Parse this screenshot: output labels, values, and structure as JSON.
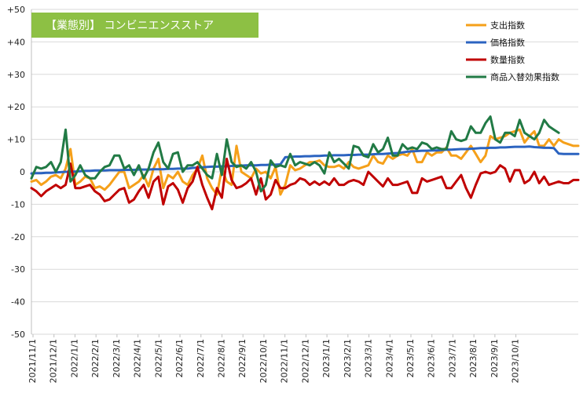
{
  "chart_data": {
    "type": "line",
    "title_box": {
      "text": "【業態別】 コンビニエンスストア",
      "background": "#8dc044",
      "color": "#ffffff"
    },
    "y_axis": {
      "min": -50,
      "max": 50,
      "step": 10,
      "tick_labels": [
        "+50",
        "+40",
        "+30",
        "+20",
        "+10",
        "0",
        "-10",
        "-20",
        "-30",
        "-40",
        "-50"
      ]
    },
    "x_axis": {
      "tick_labels": [
        "2021/11/1",
        "2021/12/1",
        "2022/1/1",
        "2022/2/1",
        "2022/3/1",
        "2022/4/1",
        "2022/5/1",
        "2022/6/1",
        "2022/7/1",
        "2022/8/1",
        "2022/9/1",
        "2022/10/1",
        "2022/11/1",
        "2022/12/1",
        "2023/1/1",
        "2023/2/1",
        "2023/3/1",
        "2023/4/1",
        "2023/5/1",
        "2023/6/1",
        "2023/7/1",
        "2023/8/1",
        "2023/9/1",
        "2023/10/1"
      ],
      "points_per_label": 4.3
    },
    "grid": "horizontal",
    "legend_position": "top-right",
    "series": [
      {
        "name": "支出指数",
        "color": "#f5a01a",
        "values": [
          -3,
          -2.5,
          -4,
          -3,
          -1.5,
          -1,
          -2,
          1,
          7,
          -4,
          -3,
          -1.5,
          -2,
          -5,
          -4.5,
          -5.5,
          -4,
          -2,
          0,
          0,
          -5,
          -4,
          -3,
          -1,
          -4.5,
          1,
          4,
          -5,
          -1,
          -2,
          0,
          -3,
          -4,
          -1,
          1,
          5,
          -2,
          -5,
          -7,
          1,
          -3,
          -4,
          8,
          0,
          -1,
          -2,
          1,
          -0.5,
          0,
          -2,
          1.5,
          -7,
          -4,
          2,
          0.5,
          1,
          2,
          3,
          3,
          3.5,
          2,
          1.5,
          1.5,
          2,
          1,
          3,
          1.5,
          1,
          1.5,
          2,
          5,
          3,
          2.5,
          5,
          4,
          5,
          5.5,
          5,
          7,
          3,
          3,
          6,
          5,
          6,
          6,
          7.5,
          5,
          5,
          4,
          6,
          8,
          5.5,
          3,
          5,
          11,
          10,
          10.5,
          11,
          12,
          12.5,
          13,
          9,
          11,
          12.5,
          8,
          8,
          10,
          8,
          10,
          9,
          8.5,
          8,
          8
        ]
      },
      {
        "name": "価格指数",
        "color": "#2b63c0",
        "values": [
          -0.5,
          -0.4,
          -0.4,
          -0.3,
          -0.3,
          -0.2,
          -0.1,
          0,
          0,
          0.1,
          0.2,
          0.3,
          0.3,
          0.4,
          0.4,
          0.4,
          0.5,
          0.5,
          0.5,
          0.6,
          0.6,
          0.6,
          0.7,
          0.7,
          0.7,
          0.8,
          0.8,
          0.8,
          0.9,
          0.9,
          1,
          1,
          1,
          1.2,
          1.3,
          1.4,
          1.5,
          1.6,
          1.6,
          1.7,
          1.7,
          1.8,
          1.9,
          1.9,
          2,
          2,
          2,
          2.1,
          2.1,
          2.2,
          2.2,
          2.3,
          4.5,
          4.6,
          4.7,
          4.7,
          4.8,
          4.8,
          4.9,
          4.9,
          5,
          5,
          5.1,
          5.1,
          5.1,
          5.2,
          5.2,
          5.3,
          5.3,
          5.3,
          5.4,
          5.5,
          5.5,
          5.6,
          5.7,
          5.8,
          6,
          6.2,
          6.3,
          6.4,
          6.5,
          6.5,
          6.6,
          6.6,
          6.7,
          6.8,
          6.8,
          6.9,
          7,
          7,
          7.1,
          7.2,
          7.3,
          7.3,
          7.4,
          7.4,
          7.5,
          7.5,
          7.6,
          7.7,
          7.7,
          7.7,
          7.8,
          7.6,
          7.5,
          7.4,
          7.4,
          7.3,
          5.6,
          5.5,
          5.5,
          5.5,
          5.5
        ]
      },
      {
        "name": "数量指数",
        "color": "#c00000",
        "values": [
          -5,
          -6,
          -7.5,
          -6,
          -5,
          -4,
          -5,
          -4,
          2.5,
          -5,
          -5,
          -4.5,
          -4,
          -6,
          -7,
          -9,
          -8.5,
          -7,
          -5.5,
          -5,
          -9.5,
          -8.5,
          -6,
          -4,
          -8,
          -3,
          -1.5,
          -10,
          -4.5,
          -3.5,
          -5.5,
          -9.5,
          -5,
          -3,
          1.5,
          -4,
          -8,
          -11.5,
          -5,
          -8,
          4,
          -2.5,
          -5,
          -4.5,
          -3.5,
          -2,
          -7,
          -2,
          -8.5,
          -7,
          -2.5,
          -5,
          -5,
          -4,
          -3.5,
          -2,
          -2.5,
          -4,
          -3,
          -4,
          -3,
          -4,
          -2,
          -4,
          -4,
          -3,
          -2.5,
          -3,
          -4,
          0,
          -1.5,
          -3,
          -4.5,
          -2,
          -4,
          -4,
          -3.5,
          -3,
          -6.5,
          -6.5,
          -2,
          -3,
          -2.5,
          -2,
          -1.5,
          -5,
          -5,
          -3,
          -1,
          -5,
          -8,
          -4,
          -0.5,
          0,
          -0.5,
          0,
          2,
          1,
          -3,
          0.5,
          0.5,
          -3.5,
          -2.5,
          0,
          -3.5,
          -1.5,
          -4,
          -3.5,
          -3,
          -3.5,
          -3.5,
          -2.5,
          -2.5
        ]
      },
      {
        "name": "商品入替効果指数",
        "color": "#217a45",
        "values": [
          -2,
          1.5,
          1,
          1.5,
          3,
          0,
          3,
          13,
          -3,
          -1,
          2,
          -1,
          -2,
          -2,
          0,
          1.5,
          2,
          5,
          5,
          1,
          2,
          -1,
          2,
          -2,
          1,
          6,
          9,
          3,
          1,
          5.5,
          6,
          0,
          2,
          2,
          3,
          1,
          -1,
          -2,
          5.5,
          -1,
          10,
          3,
          1.5,
          2,
          1,
          3,
          0,
          -6,
          -4,
          3.5,
          1.5,
          2,
          1.5,
          5.5,
          2,
          3,
          2.5,
          2,
          3,
          2,
          -0.5,
          6,
          3,
          4,
          2.5,
          1,
          8,
          7.5,
          5,
          4.5,
          8.5,
          6,
          7,
          10.5,
          5,
          5,
          8.5,
          7,
          7.5,
          7,
          9,
          8.5,
          7,
          7.5,
          7,
          7,
          12.5,
          10,
          9.5,
          10,
          14,
          12,
          12,
          15,
          17,
          10,
          9,
          12,
          12,
          11,
          16,
          12,
          11,
          10,
          12,
          16,
          14,
          13,
          12
        ]
      }
    ]
  }
}
